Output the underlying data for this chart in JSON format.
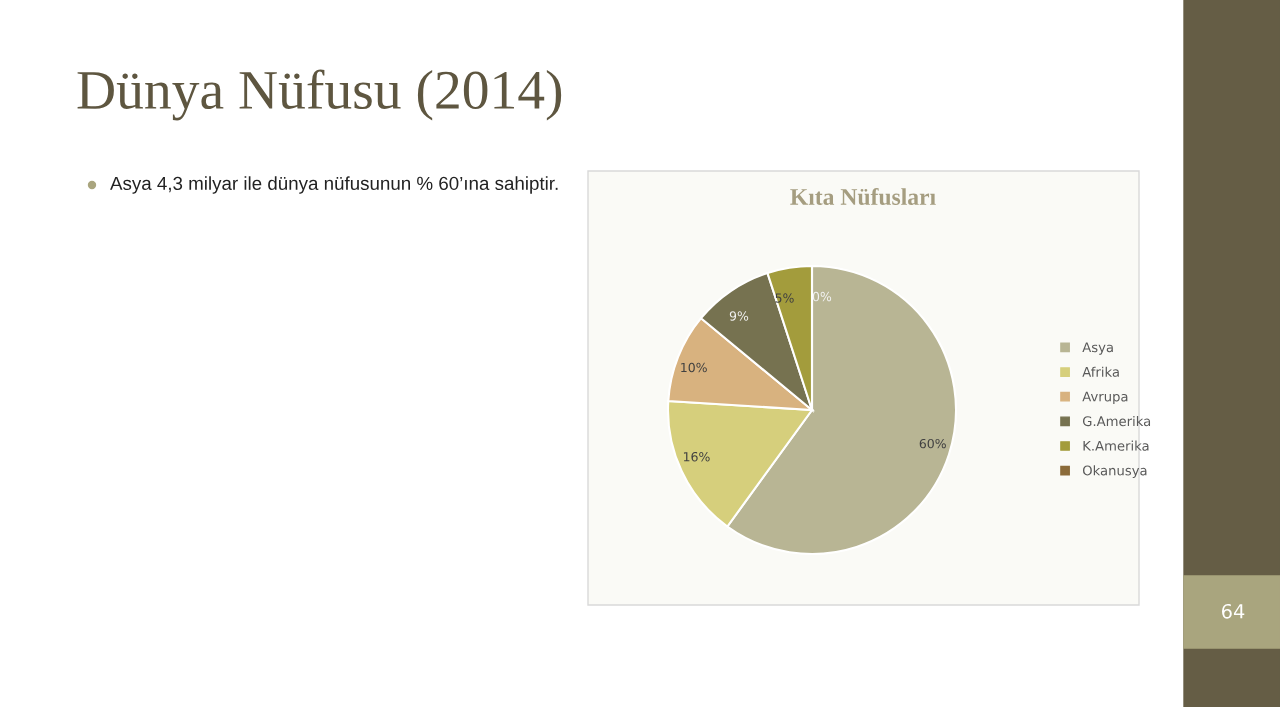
{
  "chart_data": {
    "type": "pie",
    "title": "Kıta Nüfusları",
    "categories": [
      "Asya",
      "Afrika",
      "Avrupa",
      "G.Amerika",
      "K.Amerika",
      "Okanusya"
    ],
    "values": [
      60,
      16,
      10,
      9,
      5,
      0
    ],
    "colors": [
      "#b8b594",
      "#d6cf7c",
      "#d8b27f",
      "#767250",
      "#a39c3c",
      "#8b6b3a"
    ],
    "value_labels": [
      "60%",
      "16%",
      "10%",
      "9%",
      "5%",
      "0%"
    ],
    "legend": "right",
    "annotations": [
      "Dünya Nüfusu (2014)",
      "Asya 4,3 milyar ile dünya nüfusunun % 60’ına sahiptir.",
      "64"
    ]
  }
}
